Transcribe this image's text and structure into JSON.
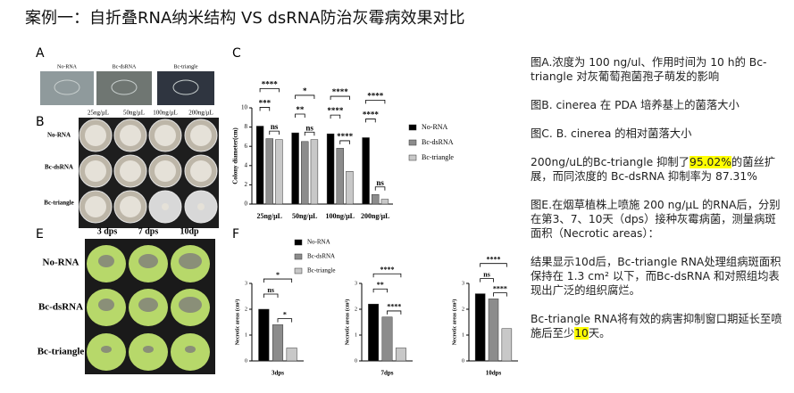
{
  "title": "案例一：自折叠RNA纳米结构 VS dsRNA防治灰霉病效果对比",
  "panel_labels": [
    "A",
    "B",
    "C",
    "E",
    "F"
  ],
  "panel_a": {
    "labels": [
      "No-RNA",
      "Bc-dsRNA",
      "Bc-triangle"
    ]
  },
  "panel_b": {
    "columns": [
      "25ng/μL",
      "50ng/μL",
      "100ng/μL",
      "200ng/μL"
    ],
    "rows": [
      "No-RNA",
      "Bc-dsRNA",
      "Bc-triangle"
    ]
  },
  "panel_e": {
    "columns": [
      "3 dps",
      "7 dps",
      "10dp"
    ],
    "rows": [
      "No-RNA",
      "Bc-dsRNA",
      "Bc-triangle"
    ]
  },
  "chart_data": [
    {
      "type": "bar",
      "y_label": "Colony diameter(cm)",
      "categories": [
        "25ng/μL",
        "50ng/μL",
        "100ng/μL",
        "200ng/μL"
      ],
      "series": [
        {
          "name": "No-RNA",
          "color": "#000000",
          "values": [
            8.1,
            7.4,
            7.3,
            6.9
          ]
        },
        {
          "name": "Bc-dsRNA",
          "color": "#8c8c8c",
          "values": [
            6.8,
            6.5,
            5.8,
            1.0
          ]
        },
        {
          "name": "Bc-triangle",
          "color": "#c8c8c8",
          "values": [
            6.7,
            6.7,
            3.4,
            0.5
          ]
        }
      ],
      "significance": [
        [
          "****",
          "***",
          "ns"
        ],
        [
          "*",
          "**",
          "ns"
        ],
        [
          "****",
          "****",
          "****"
        ],
        [
          "****",
          "****",
          "ns"
        ]
      ],
      "ylim": [
        0,
        10
      ],
      "yticks": [
        0,
        2,
        4,
        6,
        8,
        10
      ],
      "legend": "right"
    },
    {
      "type": "bar",
      "y_label": "Necrotic areas (cm²)",
      "categories": [
        "3dps"
      ],
      "series": [
        {
          "name": "No-RNA",
          "color": "#000000",
          "values": [
            2.0
          ]
        },
        {
          "name": "Bc-dsRNA",
          "color": "#8c8c8c",
          "values": [
            1.4
          ]
        },
        {
          "name": "Bc-triangle",
          "color": "#c8c8c8",
          "values": [
            0.5
          ]
        }
      ],
      "significance": [
        [
          "*",
          "ns",
          "*"
        ]
      ],
      "ylim": [
        0,
        3
      ],
      "yticks": [
        0,
        1,
        2,
        3
      ],
      "legend": "top"
    },
    {
      "type": "bar",
      "y_label": "Necrotic areas (cm²)",
      "categories": [
        "7dps"
      ],
      "series": [
        {
          "color": "#000000",
          "values": [
            2.2
          ]
        },
        {
          "color": "#8c8c8c",
          "values": [
            1.7
          ]
        },
        {
          "color": "#c8c8c8",
          "values": [
            0.5
          ]
        }
      ],
      "significance": [
        [
          "****",
          "**",
          "****"
        ]
      ],
      "ylim": [
        0,
        3
      ],
      "yticks": [
        0,
        1,
        2,
        3
      ]
    },
    {
      "type": "bar",
      "y_label": "Necrotic areas (cm²)",
      "categories": [
        "10dps"
      ],
      "series": [
        {
          "color": "#000000",
          "values": [
            2.6
          ]
        },
        {
          "color": "#8c8c8c",
          "values": [
            2.4
          ]
        },
        {
          "color": "#c8c8c8",
          "values": [
            1.25
          ]
        }
      ],
      "significance": [
        [
          "****",
          "ns",
          "****"
        ]
      ],
      "ylim": [
        0,
        3
      ],
      "yticks": [
        0,
        1,
        2,
        3
      ]
    }
  ],
  "notes": [
    {
      "text": "图A.浓度为 100 ng/ul、作用时间为 10 h的 Bc-triangle 对灰葡萄孢菌孢子萌发的影响"
    },
    {
      "text": "图B. cinerea 在 PDA 培养基上的菌落大小"
    },
    {
      "text": "图C. B. cinerea 的相对菌落大小"
    },
    {
      "before": "200ng/uL的Bc-triangle 抑制了",
      "highlight": "95.02%",
      "after": "的菌丝扩展，而同浓度的 Bc-dsRNA 抑制率为 87.31%"
    },
    {
      "text": "图E.在烟草植株上喷施 200 ng/μL 的RNA后，分别在第3、7、10天（dps）接种灰霉病菌，测量病斑面积（Necrotic areas）："
    },
    {
      "text": "结果显示10d后，Bc-triangle RNA处理组病斑面积保持在 1.3 cm² 以下，而Bc-dsRNA 和对照组均表现出广泛的组织腐烂。"
    },
    {
      "before": "Bc-triangle RNA将有效的病害抑制窗口期延长至喷施后至少",
      "highlight": "10",
      "after": "天。"
    }
  ]
}
